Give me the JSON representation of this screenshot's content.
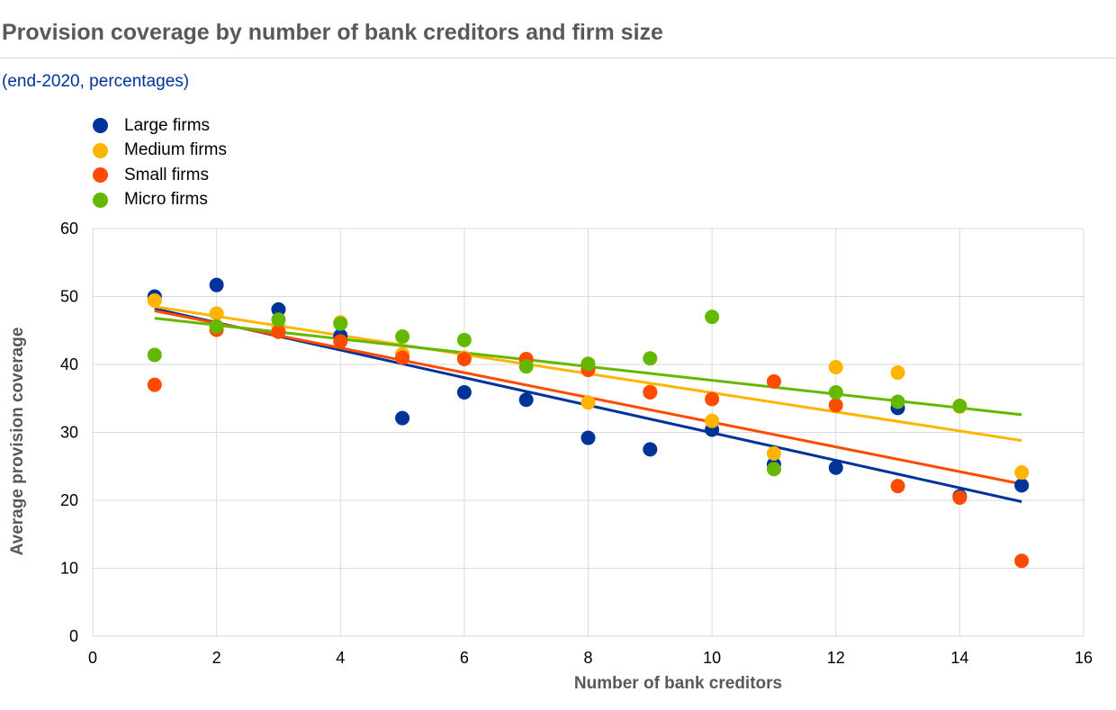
{
  "title": "Provision coverage by number of bank creditors and firm size",
  "subtitle": "(end-2020, percentages)",
  "chart_data": {
    "type": "scatter",
    "xlabel": "Number of bank creditors",
    "ylabel": "Average provision coverage",
    "xlim": [
      0,
      16
    ],
    "ylim": [
      0,
      60
    ],
    "xticks": [
      0,
      2,
      4,
      6,
      8,
      10,
      12,
      14,
      16
    ],
    "yticks": [
      0,
      10,
      20,
      30,
      40,
      50,
      60
    ],
    "grid": true,
    "legend_position": "top-left",
    "series": [
      {
        "name": "Large firms",
        "color": "#003399",
        "points": [
          [
            1,
            50
          ],
          [
            2,
            51.7
          ],
          [
            3,
            48.1
          ],
          [
            4,
            44.2
          ],
          [
            5,
            32.1
          ],
          [
            6,
            35.9
          ],
          [
            7,
            34.8
          ],
          [
            8,
            29.2
          ],
          [
            9,
            27.5
          ],
          [
            10,
            30.4
          ],
          [
            11,
            25.3
          ],
          [
            12,
            24.8
          ],
          [
            13,
            33.6
          ],
          [
            14,
            20.6
          ],
          [
            15,
            22.2
          ]
        ],
        "trend": [
          [
            1,
            48.2
          ],
          [
            15,
            19.8
          ]
        ]
      },
      {
        "name": "Medium firms",
        "color": "#FFB400",
        "points": [
          [
            1,
            49.4
          ],
          [
            2,
            47.5
          ],
          [
            3,
            45.5
          ],
          [
            4,
            46.2
          ],
          [
            5,
            41.5
          ],
          [
            6,
            41
          ],
          [
            7,
            40.5
          ],
          [
            8,
            34.4
          ],
          [
            9,
            36
          ],
          [
            10,
            31.7
          ],
          [
            11,
            26.9
          ],
          [
            12,
            39.6
          ],
          [
            13,
            38.8
          ],
          [
            14,
            33.8
          ],
          [
            15,
            24.1
          ]
        ],
        "trend": [
          [
            1,
            48.5
          ],
          [
            15,
            28.8
          ]
        ]
      },
      {
        "name": "Small firms",
        "color": "#FF4B00",
        "points": [
          [
            1,
            37
          ],
          [
            2,
            45.1
          ],
          [
            3,
            44.8
          ],
          [
            4,
            43.4
          ],
          [
            5,
            41
          ],
          [
            6,
            40.8
          ],
          [
            7,
            40.8
          ],
          [
            8,
            39.2
          ],
          [
            9,
            35.9
          ],
          [
            10,
            34.9
          ],
          [
            11,
            37.5
          ],
          [
            12,
            34
          ],
          [
            13,
            22.1
          ],
          [
            14,
            20.4
          ],
          [
            15,
            11.1
          ]
        ],
        "trend": [
          [
            1,
            47.9
          ],
          [
            15,
            22.4
          ]
        ]
      },
      {
        "name": "Micro firms",
        "color": "#65B800",
        "points": [
          [
            1,
            41.4
          ],
          [
            2,
            45.6
          ],
          [
            3,
            46.6
          ],
          [
            4,
            46
          ],
          [
            5,
            44.1
          ],
          [
            6,
            43.6
          ],
          [
            7,
            39.7
          ],
          [
            8,
            40.1
          ],
          [
            9,
            40.9
          ],
          [
            10,
            47
          ],
          [
            11,
            24.6
          ],
          [
            12,
            35.9
          ],
          [
            13,
            34.5
          ],
          [
            14,
            33.9
          ]
        ],
        "trend": [
          [
            1,
            46.8
          ],
          [
            15,
            32.6
          ]
        ]
      }
    ]
  }
}
